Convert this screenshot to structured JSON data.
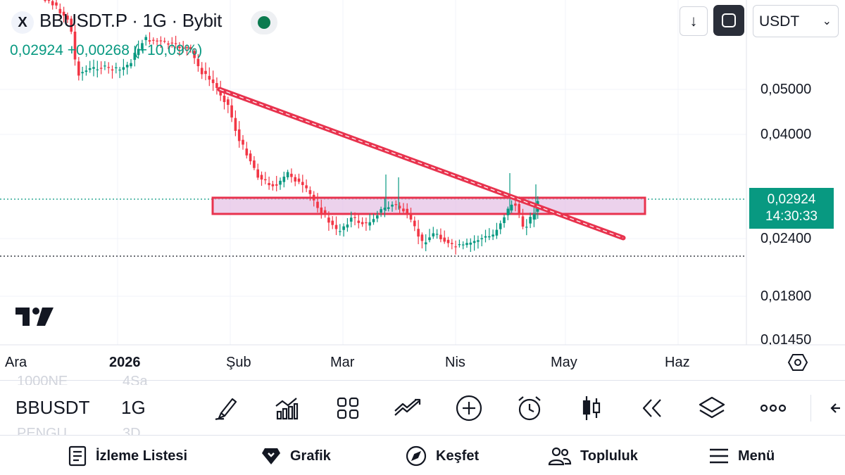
{
  "header": {
    "symbol_title": "BBUSDT.P · 1G · Bybit",
    "price_change": "0,02924 +0,00268 (+10,09%)",
    "currency": "USDT",
    "logo_glyph": "X",
    "market_status_color": "#0b7a4f"
  },
  "price_axis": {
    "labels": [
      "0,05000",
      "0,04000",
      "0,02400",
      "0,01800",
      "0,01450"
    ],
    "current_price": "0,02924",
    "countdown": "14:30:33",
    "current_price_color": "#089981"
  },
  "time_axis": {
    "labels": [
      "Ara",
      "2026",
      "Şub",
      "Mar",
      "Nis",
      "May",
      "Haz"
    ]
  },
  "toolbar": {
    "ghost_top": [
      "1000NE",
      "4Sa"
    ],
    "ghost_bottom": [
      "PENGU",
      "3D"
    ],
    "symbol": "BBUSDT",
    "interval": "1G",
    "icons": [
      "brush-icon",
      "indicators-icon",
      "layout-grid-icon",
      "compare-icon",
      "add-icon",
      "alarm-icon",
      "candle-type-icon",
      "replay-icon",
      "layers-icon",
      "more-icon",
      "back-icon"
    ]
  },
  "bottom_nav": {
    "items": [
      {
        "label": "İzleme Listesi",
        "icon": "watchlist-icon"
      },
      {
        "label": "Grafik",
        "icon": "chart-icon"
      },
      {
        "label": "Keşfet",
        "icon": "compass-icon"
      },
      {
        "label": "Topluluk",
        "icon": "community-icon"
      },
      {
        "label": "Menü",
        "icon": "menu-icon"
      }
    ]
  },
  "colors": {
    "up": "#089981",
    "down": "#f23645",
    "drawing": "#e8334e",
    "zone_fill": "#e6c3e6"
  }
}
